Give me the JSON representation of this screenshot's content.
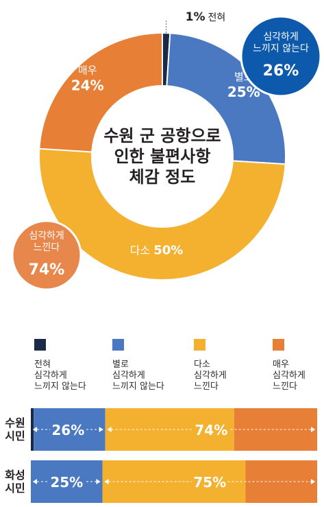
{
  "chart_data": [
    {
      "type": "pie",
      "title": "수원 군 공항으로\n인한 불편사항\n체감 정도",
      "slices": [
        {
          "label": "전혀",
          "value": 1,
          "value_text": "1%",
          "color": "#1b2a47"
        },
        {
          "label": "별로",
          "value": 25,
          "value_text": "25%",
          "color": "#4a79c2"
        },
        {
          "label": "다소",
          "value": 50,
          "value_text": "50%",
          "color": "#f3b12f"
        },
        {
          "label": "매우",
          "value": 24,
          "value_text": "24%",
          "color": "#e77f36"
        }
      ],
      "callouts": [
        {
          "label": "심각하게\n느끼지 않는다",
          "value_text": "26%",
          "color": "#0d5aad"
        },
        {
          "label": "심각하게\n느낀다",
          "value_text": "74%",
          "color": "#e8874c"
        }
      ]
    },
    {
      "type": "bar",
      "stacked": true,
      "orientation": "horizontal",
      "categories": [
        "수원\n시민",
        "화성\n시민"
      ],
      "legend": [
        {
          "label": "전혀\n심각하게\n느끼지 않는다",
          "color": "#1b2a47"
        },
        {
          "label": "별로\n심각하게\n느끼지 않는다",
          "color": "#4a79c2"
        },
        {
          "label": "다소\n심각하게\n느낀다",
          "color": "#f3b12f"
        },
        {
          "label": "매우\n심각하게\n느낀다",
          "color": "#e77f36"
        }
      ],
      "series": [
        {
          "values": [
            1,
            0
          ],
          "color": "#1b2a47"
        },
        {
          "values": [
            25,
            25
          ],
          "color": "#4a79c2"
        },
        {
          "values": [
            45,
            50
          ],
          "color": "#f3b12f"
        },
        {
          "values": [
            29,
            25
          ],
          "color": "#e77f36"
        }
      ],
      "group_labels": [
        {
          "not_serious": "26%",
          "serious": "74%"
        },
        {
          "not_serious": "25%",
          "serious": "75%"
        }
      ],
      "note": "bar segment values for 다소/매우 and the 수원 전혀 share are estimated from the figure"
    }
  ]
}
